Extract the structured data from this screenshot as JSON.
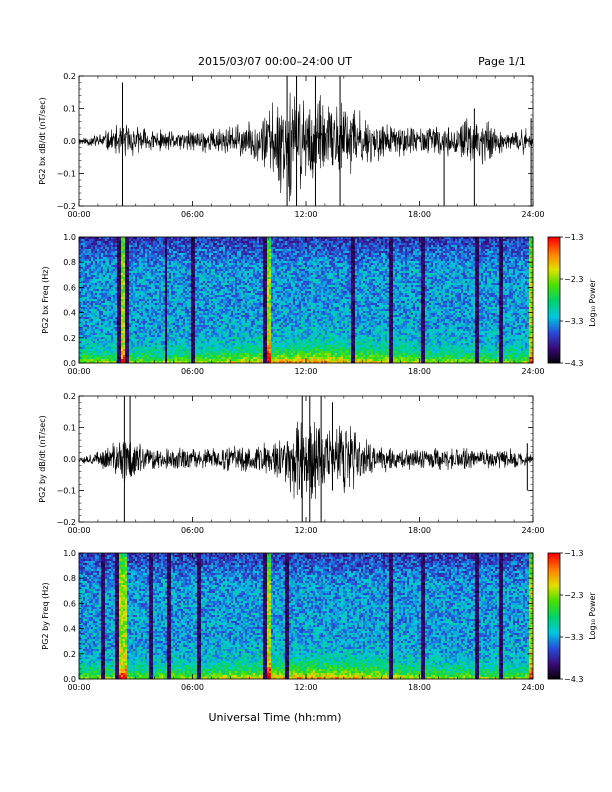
{
  "header": {
    "title": "2015/03/07  00:00–24:00 UT",
    "page": "Page 1/1"
  },
  "footer": {
    "xlabel": "Universal Time (hh:mm)"
  },
  "colors": {
    "trace": "#000000",
    "colorbar": [
      "#000000",
      "#3a0a78",
      "#2a4bd8",
      "#00c8e0",
      "#00d26e",
      "#48e000",
      "#e0e000",
      "#ff8000",
      "#ff0000"
    ]
  },
  "chart_data": [
    {
      "type": "line",
      "ylabel": "PG2 bx dB/dt (nT/sec)",
      "xticks": [
        "00:00",
        "06:00",
        "12:00",
        "18:00",
        "24:00"
      ],
      "xlim_hours": [
        0,
        24
      ],
      "ylim": [
        -0.2,
        0.2
      ],
      "yticks": [
        "0.2",
        "0.1",
        "0.0",
        "−0.1",
        "−0.2"
      ],
      "envelope_x_hours": [
        0,
        1,
        2,
        2.5,
        3,
        4,
        5,
        6,
        7,
        8,
        9,
        9.5,
        10,
        10.5,
        11,
        11.5,
        12,
        12.5,
        13,
        13.5,
        14,
        14.5,
        15,
        16,
        17,
        18,
        19,
        20,
        20.5,
        21,
        21.5,
        22,
        23,
        23.5,
        24
      ],
      "envelope_amplitude": [
        0.01,
        0.02,
        0.04,
        0.05,
        0.04,
        0.03,
        0.025,
        0.03,
        0.035,
        0.04,
        0.05,
        0.06,
        0.09,
        0.12,
        0.15,
        0.14,
        0.13,
        0.12,
        0.1,
        0.09,
        0.12,
        0.1,
        0.07,
        0.05,
        0.04,
        0.04,
        0.04,
        0.035,
        0.06,
        0.05,
        0.07,
        0.04,
        0.02,
        0.04,
        0.01
      ],
      "spikes": [
        [
          2.3,
          0.18,
          -0.2
        ],
        [
          11.0,
          0.2,
          -0.2
        ],
        [
          11.5,
          0.2,
          -0.2
        ],
        [
          12.5,
          0.2,
          -0.2
        ],
        [
          13.8,
          0.2,
          -0.2
        ],
        [
          19.3,
          -0.01,
          -0.2
        ],
        [
          20.9,
          0.1,
          -0.2
        ],
        [
          23.9,
          0.07,
          -0.2
        ]
      ]
    },
    {
      "type": "heatmap",
      "ylabel": "PG2 bx Freq (Hz)",
      "xticks": [
        "00:00",
        "06:00",
        "12:00",
        "18:00",
        "24:00"
      ],
      "ylim": [
        0,
        1.0
      ],
      "yticks": [
        "1.0",
        "0.8",
        "0.6",
        "0.4",
        "0.2",
        "0.0"
      ],
      "colorbar_label": "Log₁₀ Power",
      "colorbar_range": [
        -4.3,
        -1.3
      ],
      "colorbar_ticks": [
        "−1.3",
        "−2.3",
        "−3.3",
        "−4.3"
      ],
      "bright_columns_hours": [
        2.2,
        2.3,
        10.0,
        23.9
      ],
      "dark_columns_hours": [
        2.1,
        2.5,
        4.6,
        6.0,
        9.8,
        14.5,
        16.5,
        18.2,
        21.0,
        22.3
      ]
    },
    {
      "type": "line",
      "ylabel": "PG2 by dB/dt (nT/sec)",
      "xticks": [
        "00:00",
        "06:00",
        "12:00",
        "18:00",
        "24:00"
      ],
      "xlim_hours": [
        0,
        24
      ],
      "ylim": [
        -0.2,
        0.2
      ],
      "yticks": [
        "0.2",
        "0.1",
        "0.0",
        "−0.1",
        "−0.2"
      ],
      "envelope_x_hours": [
        0,
        1,
        2,
        2.5,
        3,
        4,
        5,
        6,
        7,
        8,
        9,
        10,
        10.5,
        11,
        11.5,
        12,
        12.5,
        13,
        13.5,
        14,
        14.5,
        15,
        16,
        17,
        18,
        19,
        20,
        21,
        22,
        23,
        24
      ],
      "envelope_amplitude": [
        0.01,
        0.02,
        0.05,
        0.08,
        0.05,
        0.03,
        0.03,
        0.03,
        0.03,
        0.035,
        0.04,
        0.05,
        0.06,
        0.08,
        0.12,
        0.15,
        0.14,
        0.1,
        0.09,
        0.1,
        0.09,
        0.06,
        0.04,
        0.03,
        0.04,
        0.03,
        0.03,
        0.03,
        0.025,
        0.03,
        0.01
      ],
      "spikes": [
        [
          2.4,
          0.2,
          -0.2
        ],
        [
          2.7,
          0.2,
          -0.05
        ],
        [
          11.8,
          0.2,
          -0.2
        ],
        [
          12.2,
          0.2,
          -0.2
        ],
        [
          12.8,
          0.2,
          -0.2
        ],
        [
          13.4,
          0.18,
          -0.1
        ],
        [
          23.7,
          0.05,
          -0.1
        ]
      ]
    },
    {
      "type": "heatmap",
      "ylabel": "PG2 by Freq (Hz)",
      "xticks": [
        "00:00",
        "06:00",
        "12:00",
        "18:00",
        "24:00"
      ],
      "ylim": [
        0,
        1.0
      ],
      "yticks": [
        "1.0",
        "0.8",
        "0.6",
        "0.4",
        "0.2",
        "0.0"
      ],
      "colorbar_label": "Log₁₀ Power",
      "colorbar_range": [
        -4.3,
        -1.3
      ],
      "colorbar_ticks": [
        "−1.3",
        "−2.3",
        "−3.3",
        "−4.3"
      ],
      "bright_columns_hours": [
        2.2,
        2.4,
        10.0,
        23.9
      ],
      "dark_columns_hours": [
        1.3,
        2.0,
        3.8,
        4.8,
        6.3,
        9.8,
        11.0,
        16.5,
        18.2,
        21.0,
        22.3
      ]
    }
  ]
}
